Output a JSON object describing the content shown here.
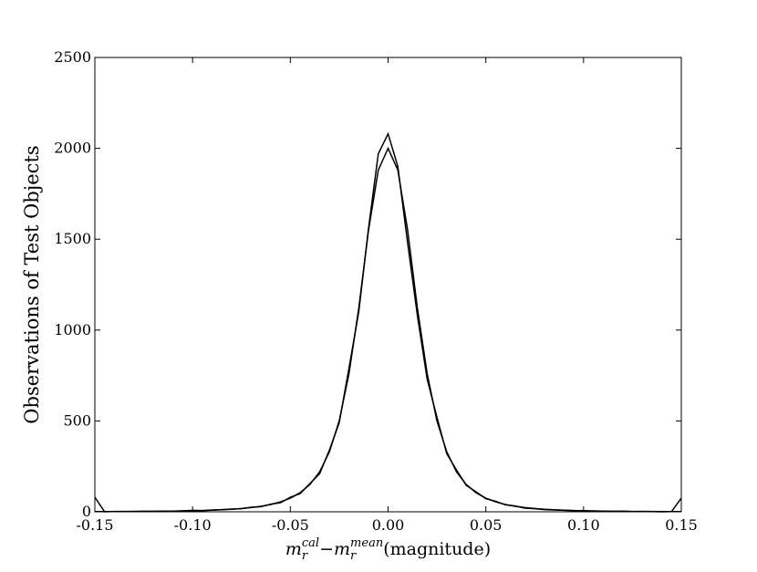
{
  "chart_data": {
    "type": "line",
    "ylabel": "Observations of Test Objects",
    "xlabel": [
      {
        "text": "m",
        "sub": "r",
        "sup": "cal"
      },
      {
        "text": "−"
      },
      {
        "text": "m",
        "sub": "r",
        "sup": "mean"
      },
      {
        "text": "(magnitude)"
      }
    ],
    "x": [
      -0.15,
      -0.145,
      -0.14,
      -0.135,
      -0.13,
      -0.125,
      -0.12,
      -0.115,
      -0.11,
      -0.105,
      -0.1,
      -0.095,
      -0.09,
      -0.085,
      -0.08,
      -0.075,
      -0.07,
      -0.065,
      -0.06,
      -0.055,
      -0.05,
      -0.045,
      -0.04,
      -0.035,
      -0.03,
      -0.025,
      -0.02,
      -0.015,
      -0.01,
      -0.005,
      0,
      0.005,
      0.01,
      0.015,
      0.02,
      0.025,
      0.03,
      0.035,
      0.04,
      0.045,
      0.05,
      0.055,
      0.06,
      0.065,
      0.07,
      0.075,
      0.08,
      0.085,
      0.09,
      0.095,
      0.1,
      0.105,
      0.11,
      0.115,
      0.12,
      0.125,
      0.13,
      0.135,
      0.14,
      0.145,
      0.15
    ],
    "series": [
      {
        "color": "#000000",
        "values": [
          80,
          0,
          2,
          1,
          2,
          3,
          2,
          4,
          3,
          5,
          8,
          6,
          10,
          12,
          15,
          17,
          25,
          28,
          42,
          50,
          80,
          100,
          155,
          210,
          340,
          490,
          790,
          1100,
          1560,
          1970,
          2080,
          1900,
          1480,
          1080,
          730,
          520,
          320,
          230,
          145,
          110,
          72,
          58,
          38,
          32,
          20,
          17,
          12,
          10,
          8,
          6,
          5,
          4,
          3,
          2,
          3,
          1,
          2,
          1,
          0,
          1,
          75
        ]
      },
      {
        "color": "#000000",
        "values": [
          1,
          1,
          1,
          2,
          2,
          2,
          3,
          3,
          4,
          5,
          6,
          7,
          9,
          11,
          14,
          18,
          23,
          30,
          40,
          55,
          75,
          105,
          150,
          220,
          330,
          500,
          760,
          1120,
          1550,
          1880,
          2000,
          1880,
          1550,
          1120,
          760,
          500,
          330,
          220,
          150,
          105,
          75,
          55,
          40,
          30,
          23,
          18,
          14,
          11,
          9,
          7,
          6,
          5,
          4,
          3,
          3,
          2,
          2,
          2,
          1,
          1,
          1
        ]
      }
    ],
    "xlim": [
      -0.15,
      0.15
    ],
    "xticks": [
      {
        "value": -0.15,
        "label": "-0.15"
      },
      {
        "value": -0.1,
        "label": "-0.10"
      },
      {
        "value": -0.05,
        "label": "-0.05"
      },
      {
        "value": 0,
        "label": "0.00"
      },
      {
        "value": 0.05,
        "label": "0.05"
      },
      {
        "value": 0.1,
        "label": "0.10"
      },
      {
        "value": 0.15,
        "label": "0.15"
      }
    ],
    "ylim": [
      0,
      2500
    ],
    "yticks": [
      0,
      500,
      1000,
      1500,
      2000,
      2500
    ],
    "grid": false
  }
}
